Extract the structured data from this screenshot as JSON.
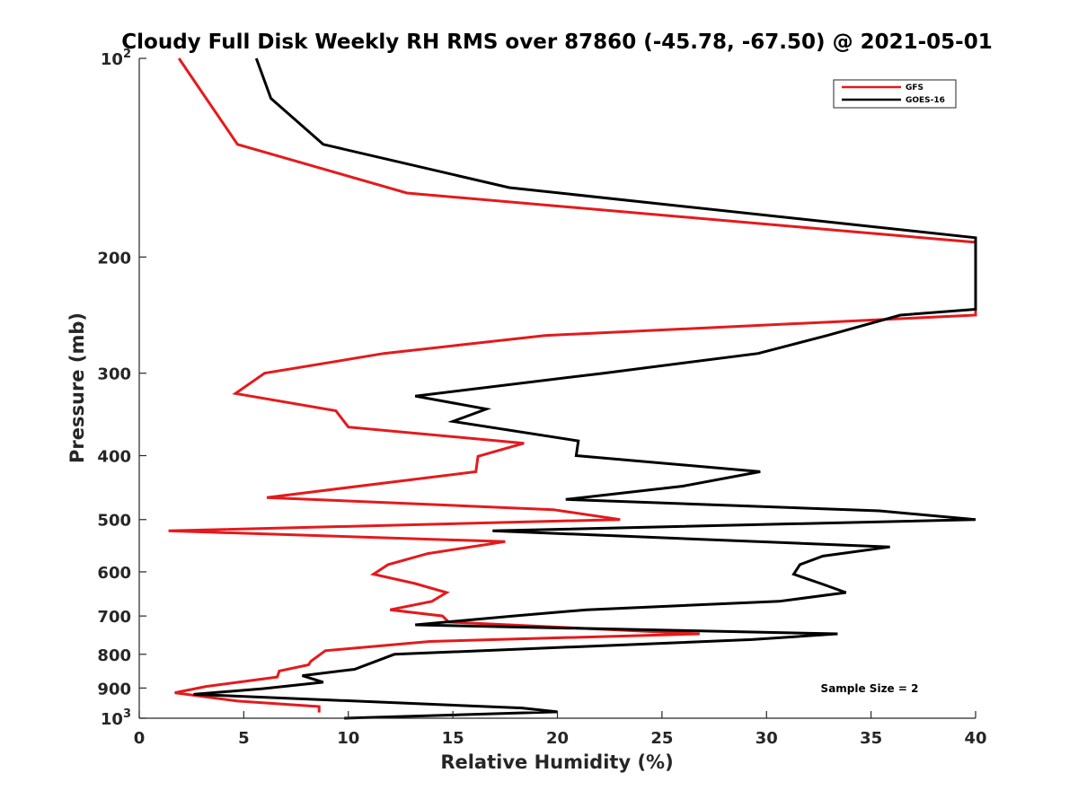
{
  "chart_data": {
    "type": "line",
    "title": "Cloudy Full Disk Weekly RH RMS over 87860 (-45.78, -67.50) @ 2021-05-01",
    "xlabel": "Relative Humidity (%)",
    "ylabel": "Pressure (mb)",
    "xlim": [
      0,
      40
    ],
    "ylim": [
      100,
      1000
    ],
    "y_scale": "log",
    "y_reversed": true,
    "grid": false,
    "legend_position": "top-right",
    "x_ticks": [
      "0",
      "5",
      "10",
      "15",
      "20",
      "25",
      "30",
      "35",
      "40"
    ],
    "y_ticks": [
      {
        "value": 100,
        "base": "10",
        "exp": "2"
      },
      {
        "value": 200,
        "label": "200"
      },
      {
        "value": 300,
        "label": "300"
      },
      {
        "value": 400,
        "label": "400"
      },
      {
        "value": 500,
        "label": "500"
      },
      {
        "value": 600,
        "label": "600"
      },
      {
        "value": 700,
        "label": "700"
      },
      {
        "value": 800,
        "label": "800"
      },
      {
        "value": 900,
        "label": "900"
      },
      {
        "value": 1000,
        "base": "10",
        "exp": "3"
      }
    ],
    "annotation": "Sample Size = 2",
    "series": [
      {
        "name": "GFS",
        "color": "#e41a1c",
        "points": [
          [
            1.9,
            100
          ],
          [
            3.2,
            115
          ],
          [
            4.7,
            135
          ],
          [
            12.8,
            160
          ],
          [
            40,
            190
          ],
          [
            40,
            245
          ],
          [
            19.4,
            263
          ],
          [
            11.7,
            280
          ],
          [
            6.0,
            300
          ],
          [
            4.6,
            322
          ],
          [
            9.4,
            342
          ],
          [
            10.0,
            362
          ],
          [
            18.4,
            383
          ],
          [
            16.2,
            401
          ],
          [
            16.1,
            423
          ],
          [
            6.1,
            463
          ],
          [
            19.8,
            483
          ],
          [
            23.0,
            500
          ],
          [
            1.4,
            520
          ],
          [
            17.5,
            540
          ],
          [
            13.8,
            563
          ],
          [
            11.9,
            585
          ],
          [
            11.2,
            605
          ],
          [
            13.2,
            625
          ],
          [
            14.7,
            645
          ],
          [
            14.0,
            665
          ],
          [
            12.0,
            685
          ],
          [
            14.5,
            700
          ],
          [
            14.8,
            715
          ],
          [
            26.8,
            745
          ],
          [
            13.9,
            765
          ],
          [
            8.9,
            790
          ],
          [
            8.2,
            820
          ],
          [
            8.1,
            830
          ],
          [
            6.7,
            848
          ],
          [
            6.6,
            866
          ],
          [
            3.2,
            895
          ],
          [
            1.7,
            915
          ],
          [
            4.7,
            942
          ],
          [
            8.6,
            960
          ],
          [
            8.6,
            980
          ]
        ]
      },
      {
        "name": "GOES-16",
        "color": "#000000",
        "points": [
          [
            5.6,
            100
          ],
          [
            6.3,
            115
          ],
          [
            8.8,
            135
          ],
          [
            17.7,
            157
          ],
          [
            40,
            187
          ],
          [
            40,
            240
          ],
          [
            36.4,
            245
          ],
          [
            32.9,
            263
          ],
          [
            29.6,
            280
          ],
          [
            22.2,
            300
          ],
          [
            13.2,
            325
          ],
          [
            16.6,
            340
          ],
          [
            15.0,
            355
          ],
          [
            21.0,
            380
          ],
          [
            20.9,
            400
          ],
          [
            29.7,
            423
          ],
          [
            26.0,
            445
          ],
          [
            20.4,
            466
          ],
          [
            35.4,
            485
          ],
          [
            40,
            500
          ],
          [
            16.9,
            520
          ],
          [
            35.9,
            550
          ],
          [
            32.7,
            568
          ],
          [
            31.6,
            585
          ],
          [
            31.3,
            605
          ],
          [
            32.6,
            625
          ],
          [
            33.8,
            645
          ],
          [
            30.6,
            665
          ],
          [
            21.4,
            685
          ],
          [
            17.9,
            700
          ],
          [
            13.2,
            722
          ],
          [
            33.4,
            745
          ],
          [
            29.3,
            760
          ],
          [
            12.2,
            800
          ],
          [
            10.3,
            843
          ],
          [
            7.8,
            862
          ],
          [
            8.8,
            882
          ],
          [
            5.9,
            902
          ],
          [
            2.6,
            920
          ],
          [
            18.3,
            965
          ],
          [
            20.0,
            978
          ],
          [
            9.8,
            1000
          ]
        ]
      }
    ]
  }
}
